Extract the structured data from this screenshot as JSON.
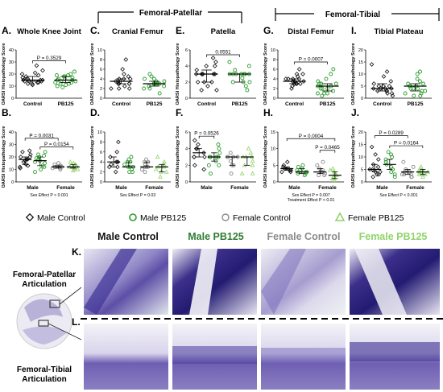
{
  "headers": {
    "femoral_patellar": "Femoral-Patellar",
    "femoral_tibial": "Femoral-Tibial"
  },
  "y_axis_label": "OARSI Histopathology Score",
  "colors": {
    "male_control": "#111111",
    "male_pb125": "#2e9e2e",
    "female_control": "#8a8a8a",
    "female_pb125": "#8fd46a",
    "accent_green": "#2e7d32"
  },
  "legend": {
    "items": [
      {
        "label": "Male Control",
        "marker": "diamond",
        "color": "#111111"
      },
      {
        "label": "Male PB125",
        "marker": "circle",
        "color": "#2e9e2e"
      },
      {
        "label": "Female Control",
        "marker": "circle",
        "color": "#8a8a8a"
      },
      {
        "label": "Female PB125",
        "marker": "triangle",
        "color": "#8fd46a"
      }
    ]
  },
  "chart_data": [
    {
      "id": "A",
      "letter": "A.",
      "title": "Whole Knee Joint",
      "type": "scatter",
      "ylim": [
        0,
        40
      ],
      "yticks": [
        "0",
        "10",
        "20",
        "30",
        "40"
      ],
      "categories": [
        "Control",
        "PB125"
      ],
      "series": [
        {
          "name": "Control",
          "values": [
            20,
            18,
            17,
            16,
            16,
            15,
            15,
            14,
            14,
            14,
            13,
            13,
            12,
            12,
            11,
            21,
            23,
            27,
            19,
            15
          ]
        },
        {
          "name": "PB125",
          "values": [
            22,
            20,
            19,
            18,
            17,
            16,
            15,
            15,
            14,
            14,
            13,
            13,
            12,
            12,
            11,
            10,
            9,
            19,
            16,
            18
          ]
        }
      ],
      "annotations": [
        {
          "text": "P = 0.3529",
          "between": [
            0,
            1
          ],
          "y": 31
        }
      ]
    },
    {
      "id": "C",
      "letter": "C.",
      "title": "Cranial Femur",
      "type": "scatter",
      "ylim": [
        0,
        10
      ],
      "yticks": [
        "0",
        "2",
        "4",
        "6",
        "8",
        "10"
      ],
      "categories": [
        "Control",
        "PB125"
      ],
      "series": [
        {
          "name": "Control",
          "values": [
            8,
            6,
            5,
            4.5,
            4,
            4,
            4,
            3.5,
            3.5,
            3,
            3,
            3,
            3,
            2.5,
            2,
            2,
            2
          ]
        },
        {
          "name": "PB125",
          "values": [
            5,
            4.5,
            4,
            4,
            3.5,
            3.5,
            3,
            3,
            3,
            3,
            3,
            2.5,
            2.5,
            2,
            2,
            1
          ]
        }
      ],
      "annotations": []
    },
    {
      "id": "E",
      "letter": "E.",
      "title": "Patella",
      "type": "scatter",
      "ylim": [
        0,
        6
      ],
      "yticks": [
        "0",
        "2",
        "4",
        "6"
      ],
      "categories": [
        "Control",
        "PB125"
      ],
      "series": [
        {
          "name": "Control",
          "values": [
            5,
            4.5,
            4,
            4,
            3.5,
            3,
            3,
            3,
            3,
            3,
            3,
            2,
            2,
            2,
            1.5,
            1,
            1
          ]
        },
        {
          "name": "PB125",
          "values": [
            4.5,
            4,
            3.5,
            3,
            3,
            3,
            3,
            3,
            3,
            3,
            2.5,
            2,
            2,
            2,
            1.5,
            1
          ]
        }
      ],
      "annotations": [
        {
          "text": "0.0551",
          "between": [
            0,
            1
          ],
          "y": 5.4
        }
      ]
    },
    {
      "id": "G",
      "letter": "G.",
      "title": "Distal Femur",
      "type": "scatter",
      "ylim": [
        0,
        10
      ],
      "yticks": [
        "0",
        "2",
        "4",
        "6",
        "8",
        "10"
      ],
      "categories": [
        "Control",
        "PB125"
      ],
      "series": [
        {
          "name": "Control",
          "values": [
            6,
            5,
            4.5,
            4,
            4,
            4,
            3.5,
            3.5,
            3.5,
            3,
            3,
            3,
            3,
            2.5,
            2,
            5,
            4
          ]
        },
        {
          "name": "PB125",
          "values": [
            6,
            5,
            4,
            3.5,
            3,
            3,
            3,
            2.5,
            2.5,
            2,
            2,
            2,
            1.5,
            1,
            1,
            1,
            0.5
          ]
        }
      ],
      "annotations": [
        {
          "text": "P = 0.0007",
          "between": [
            0,
            1
          ],
          "y": 7.5
        }
      ]
    },
    {
      "id": "I",
      "letter": "I.",
      "title": "Tibial Plateau",
      "type": "scatter",
      "ylim": [
        0,
        20
      ],
      "yticks": [
        "0",
        "5",
        "10",
        "15",
        "20"
      ],
      "categories": [
        "Control",
        "PB125"
      ],
      "series": [
        {
          "name": "Control",
          "values": [
            14,
            11,
            9,
            7,
            6,
            5,
            5,
            5,
            4,
            4,
            4,
            4,
            3,
            3,
            3,
            2,
            2,
            1
          ]
        },
        {
          "name": "PB125",
          "values": [
            11,
            10,
            8,
            7,
            6,
            6,
            5,
            5,
            5,
            4,
            4,
            4,
            3,
            3,
            2,
            2,
            1,
            1
          ]
        }
      ],
      "annotations": []
    },
    {
      "id": "B",
      "letter": "B.",
      "title": "",
      "type": "scatter",
      "ylim": [
        0,
        40
      ],
      "yticks": [
        "0",
        "10",
        "20",
        "30",
        "40"
      ],
      "categories": [
        "Male",
        "Female"
      ],
      "series": [
        {
          "name": "Male Control",
          "values": [
            25,
            22,
            20,
            18,
            17,
            16,
            14,
            13,
            12,
            11,
            20,
            18,
            24
          ]
        },
        {
          "name": "Male PB125",
          "values": [
            24,
            22,
            20,
            18,
            17,
            16,
            15,
            13,
            12,
            10,
            8,
            19,
            21
          ]
        },
        {
          "name": "Female Control",
          "values": [
            15,
            14,
            13,
            13,
            12,
            12,
            12,
            11,
            11,
            10
          ]
        },
        {
          "name": "Female PB125",
          "values": [
            16,
            15,
            14,
            13,
            12,
            12,
            11,
            11,
            10,
            9,
            10
          ]
        }
      ],
      "annotations": [
        {
          "text": "P = 0.0031",
          "between": [
            0,
            2
          ],
          "y": 35
        },
        {
          "text": "P = 0.0154",
          "between": [
            1,
            3
          ],
          "y": 28
        }
      ],
      "footnote": "Sex Effect P < 0.001"
    },
    {
      "id": "D",
      "letter": "D.",
      "title": "",
      "type": "scatter",
      "ylim": [
        0,
        10
      ],
      "yticks": [
        "0",
        "2",
        "4",
        "6",
        "8",
        "10"
      ],
      "categories": [
        "Male",
        "Female"
      ],
      "series": [
        {
          "name": "Male Control",
          "values": [
            8,
            6,
            5,
            4,
            4,
            4,
            3.5,
            3,
            3,
            2
          ]
        },
        {
          "name": "Male PB125",
          "values": [
            5,
            4.5,
            4,
            4,
            3.5,
            3,
            3,
            3,
            2.5,
            2,
            2
          ]
        },
        {
          "name": "Female Control",
          "values": [
            4.5,
            4,
            4,
            3.5,
            3,
            3,
            3,
            2.5,
            2
          ]
        },
        {
          "name": "Female PB125",
          "values": [
            5,
            4,
            3.5,
            3,
            3,
            2.5,
            2,
            2,
            1
          ]
        }
      ],
      "annotations": [],
      "footnote": "Sex Effect P = 0.03"
    },
    {
      "id": "F",
      "letter": "F.",
      "title": "",
      "type": "scatter",
      "ylim": [
        0,
        6
      ],
      "yticks": [
        "0",
        "2",
        "4",
        "6"
      ],
      "categories": [
        "Male",
        "Female"
      ],
      "series": [
        {
          "name": "Male Control",
          "values": [
            5,
            4.5,
            4,
            4,
            3.5,
            3,
            3,
            3,
            2,
            1.5
          ]
        },
        {
          "name": "Male PB125",
          "values": [
            4.5,
            4,
            3.5,
            3,
            3,
            3,
            3,
            2.5,
            2,
            2,
            1
          ]
        },
        {
          "name": "Female Control",
          "values": [
            3.5,
            3,
            3,
            3,
            3,
            2.5,
            2,
            2,
            1
          ]
        },
        {
          "name": "Female PB125",
          "values": [
            4,
            3.5,
            3,
            3,
            3,
            2.5,
            2,
            2,
            1,
            1
          ]
        }
      ],
      "annotations": [
        {
          "text": "P = 0.0526",
          "between": [
            0,
            1
          ],
          "y": 5.5
        }
      ]
    },
    {
      "id": "H",
      "letter": "H.",
      "title": "",
      "type": "scatter",
      "ylim": [
        0,
        15
      ],
      "yticks": [
        "0",
        "5",
        "10",
        "15"
      ],
      "categories": [
        "Male",
        "Female"
      ],
      "series": [
        {
          "name": "Male Control",
          "values": [
            6,
            5,
            4.5,
            4,
            4,
            4,
            3.5,
            3.5,
            3,
            3
          ]
        },
        {
          "name": "Male PB125",
          "values": [
            5,
            4.5,
            4,
            3.5,
            3,
            3,
            3,
            2.5,
            2.5,
            2
          ]
        },
        {
          "name": "Female Control",
          "values": [
            6,
            5,
            4,
            3.5,
            3,
            3,
            3,
            2.5,
            2,
            2
          ]
        },
        {
          "name": "Female PB125",
          "values": [
            4,
            3.5,
            3,
            2.5,
            2,
            2,
            1.5,
            1,
            1,
            0.5
          ]
        }
      ],
      "annotations": [
        {
          "text": "P = 0.0004",
          "between": [
            0,
            3
          ],
          "y": 13
        },
        {
          "text": "P = 0.0465",
          "between": [
            2,
            3
          ],
          "y": 9.5
        }
      ],
      "footnote": "Sex Effect P = 0.007",
      "footnote2": "Treatment Effect P < 0.01"
    },
    {
      "id": "J",
      "letter": "J.",
      "title": "",
      "type": "scatter",
      "ylim": [
        0,
        20
      ],
      "yticks": [
        "0",
        "5",
        "10",
        "15",
        "20"
      ],
      "categories": [
        "Male",
        "Female"
      ],
      "series": [
        {
          "name": "Male Control",
          "values": [
            14,
            11,
            9,
            7,
            6,
            5,
            5,
            4,
            4,
            3,
            3,
            2
          ]
        },
        {
          "name": "Male PB125",
          "values": [
            12,
            11,
            10,
            9,
            8,
            7,
            6,
            5,
            5,
            4,
            3,
            2
          ]
        },
        {
          "name": "Female Control",
          "values": [
            8,
            6,
            5,
            4,
            4,
            3,
            3,
            3,
            2,
            2
          ]
        },
        {
          "name": "Female PB125",
          "values": [
            6,
            5,
            5,
            4,
            4,
            4,
            3,
            3,
            3,
            2
          ]
        }
      ],
      "annotations": [
        {
          "text": "P = 0.0289",
          "between": [
            0,
            2
          ],
          "y": 18.5
        },
        {
          "text": "P = 0.0164",
          "between": [
            1,
            3
          ],
          "y": 14.5
        }
      ],
      "footnote": "Sex Effect P < 0.001"
    }
  ],
  "histology": {
    "k_letter": "K.",
    "l_letter": "L.",
    "column_labels": [
      {
        "text": "Male Control",
        "color": "#111111"
      },
      {
        "text": "Male PB125",
        "color": "#2e7d32"
      },
      {
        "text": "Female Control",
        "color": "#8a8a8a"
      },
      {
        "text": "Female PB125",
        "color": "#8fd46a"
      }
    ],
    "row_labels": [
      "Femoral-Patellar Articulation",
      "Femoral-Tibial Articulation"
    ]
  }
}
